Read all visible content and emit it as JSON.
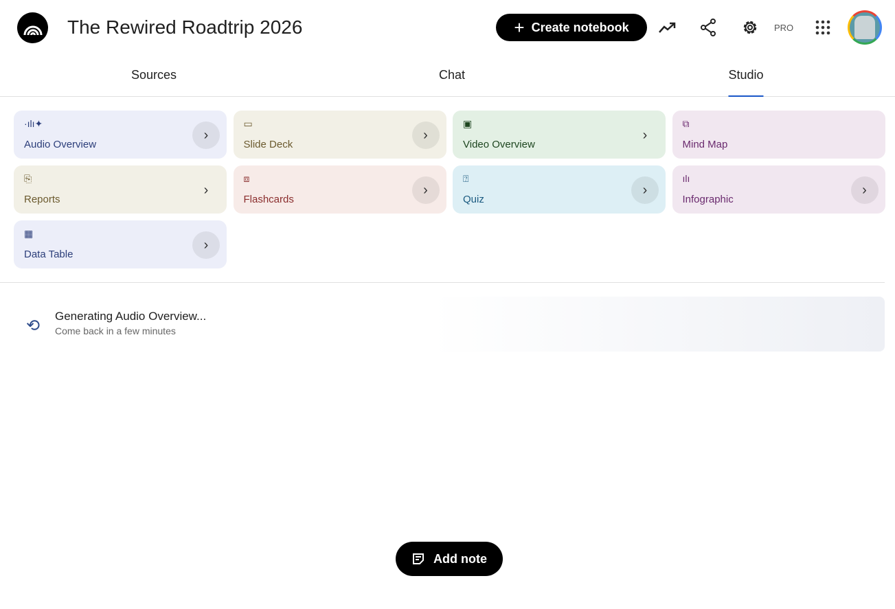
{
  "header": {
    "title": "The Rewired Roadtrip 2026",
    "create_label": "Create notebook",
    "pro_label": "PRO"
  },
  "tabs": [
    {
      "label": "Sources"
    },
    {
      "label": "Chat"
    },
    {
      "label": "Studio",
      "active": true
    }
  ],
  "studio": {
    "cards": [
      {
        "label": "Audio Overview",
        "icon": "audio-waveform-icon",
        "color": "#2c3e7a",
        "bg": "#eceef9"
      },
      {
        "label": "Slide Deck",
        "icon": "slides-icon",
        "color": "#6b5a2e",
        "bg": "#f2f0e6"
      },
      {
        "label": "Video Overview",
        "icon": "video-icon",
        "color": "#1e4620",
        "bg": "#e3f0e4"
      },
      {
        "label": "Mind Map",
        "icon": "mind-map-icon",
        "color": "#6a2a6e",
        "bg": "#f1e7f0"
      },
      {
        "label": "Reports",
        "icon": "reports-icon",
        "color": "#6b5a2e",
        "bg": "#f2f0e6"
      },
      {
        "label": "Flashcards",
        "icon": "flashcards-icon",
        "color": "#8a2d2d",
        "bg": "#f7ebe8"
      },
      {
        "label": "Quiz",
        "icon": "quiz-icon",
        "color": "#1a5a80",
        "bg": "#ddeff5"
      },
      {
        "label": "Infographic",
        "icon": "infographic-icon",
        "color": "#6a2a6e",
        "bg": "#f1e7f0"
      },
      {
        "label": "Data Table",
        "icon": "table-icon",
        "color": "#2c3e7a",
        "bg": "#eceef9"
      }
    ]
  },
  "generating": {
    "title": "Generating Audio Overview...",
    "subtitle": "Come back in a few minutes"
  },
  "add_note_label": "Add note"
}
